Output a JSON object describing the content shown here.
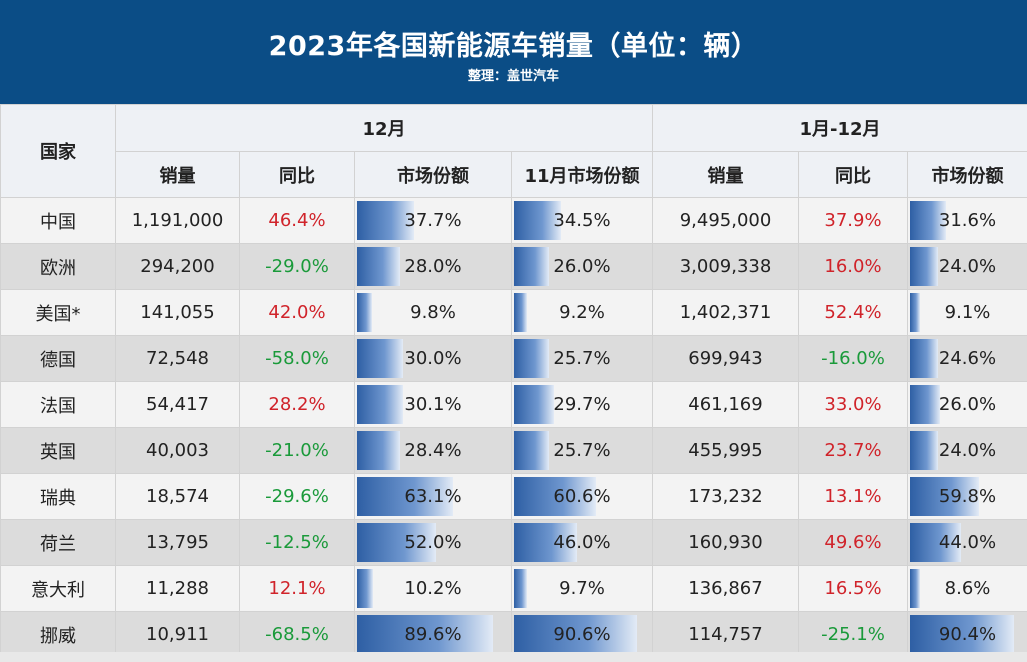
{
  "header": {
    "title": "2023年各国新能源车销量（单位：辆）",
    "subtitle": "整理：盖世汽车"
  },
  "columns": {
    "country": "国家",
    "group_dec": "12月",
    "group_year": "1月-12月",
    "sales": "销量",
    "yoy": "同比",
    "share": "市场份额",
    "nov_share": "11月市场份额"
  },
  "rows": [
    {
      "country": "中国",
      "sales": "1,191,000",
      "yoy": "46.4%",
      "share": "37.7%",
      "nov": "34.5%",
      "ysales": "9,495,000",
      "yyoy": "37.9%",
      "yshare": "31.6%"
    },
    {
      "country": "欧洲",
      "sales": "294,200",
      "yoy": "-29.0%",
      "share": "28.0%",
      "nov": "26.0%",
      "ysales": "3,009,338",
      "yyoy": "16.0%",
      "yshare": "24.0%"
    },
    {
      "country": "美国*",
      "sales": "141,055",
      "yoy": "42.0%",
      "share": "9.8%",
      "nov": "9.2%",
      "ysales": "1,402,371",
      "yyoy": "52.4%",
      "yshare": "9.1%"
    },
    {
      "country": "德国",
      "sales": "72,548",
      "yoy": "-58.0%",
      "share": "30.0%",
      "nov": "25.7%",
      "ysales": "699,943",
      "yyoy": "-16.0%",
      "yshare": "24.6%"
    },
    {
      "country": "法国",
      "sales": "54,417",
      "yoy": "28.2%",
      "share": "30.1%",
      "nov": "29.7%",
      "ysales": "461,169",
      "yyoy": "33.0%",
      "yshare": "26.0%"
    },
    {
      "country": "英国",
      "sales": "40,003",
      "yoy": "-21.0%",
      "share": "28.4%",
      "nov": "25.7%",
      "ysales": "455,995",
      "yyoy": "23.7%",
      "yshare": "24.0%"
    },
    {
      "country": "瑞典",
      "sales": "18,574",
      "yoy": "-29.6%",
      "share": "63.1%",
      "nov": "60.6%",
      "ysales": "173,232",
      "yyoy": "13.1%",
      "yshare": "59.8%"
    },
    {
      "country": "荷兰",
      "sales": "13,795",
      "yoy": "-12.5%",
      "share": "52.0%",
      "nov": "46.0%",
      "ysales": "160,930",
      "yyoy": "49.6%",
      "yshare": "44.0%"
    },
    {
      "country": "意大利",
      "sales": "11,288",
      "yoy": "12.1%",
      "share": "10.2%",
      "nov": "9.7%",
      "ysales": "136,867",
      "yyoy": "16.5%",
      "yshare": "8.6%"
    },
    {
      "country": "挪威",
      "sales": "10,911",
      "yoy": "-68.5%",
      "share": "89.6%",
      "nov": "90.6%",
      "ysales": "114,757",
      "yyoy": "-25.1%",
      "yshare": "90.4%"
    }
  ],
  "colors": {
    "header_bg": "#0b4d86",
    "positive": "#d0232a",
    "negative": "#1a9a3a",
    "bar": "#2e5fa4"
  }
}
